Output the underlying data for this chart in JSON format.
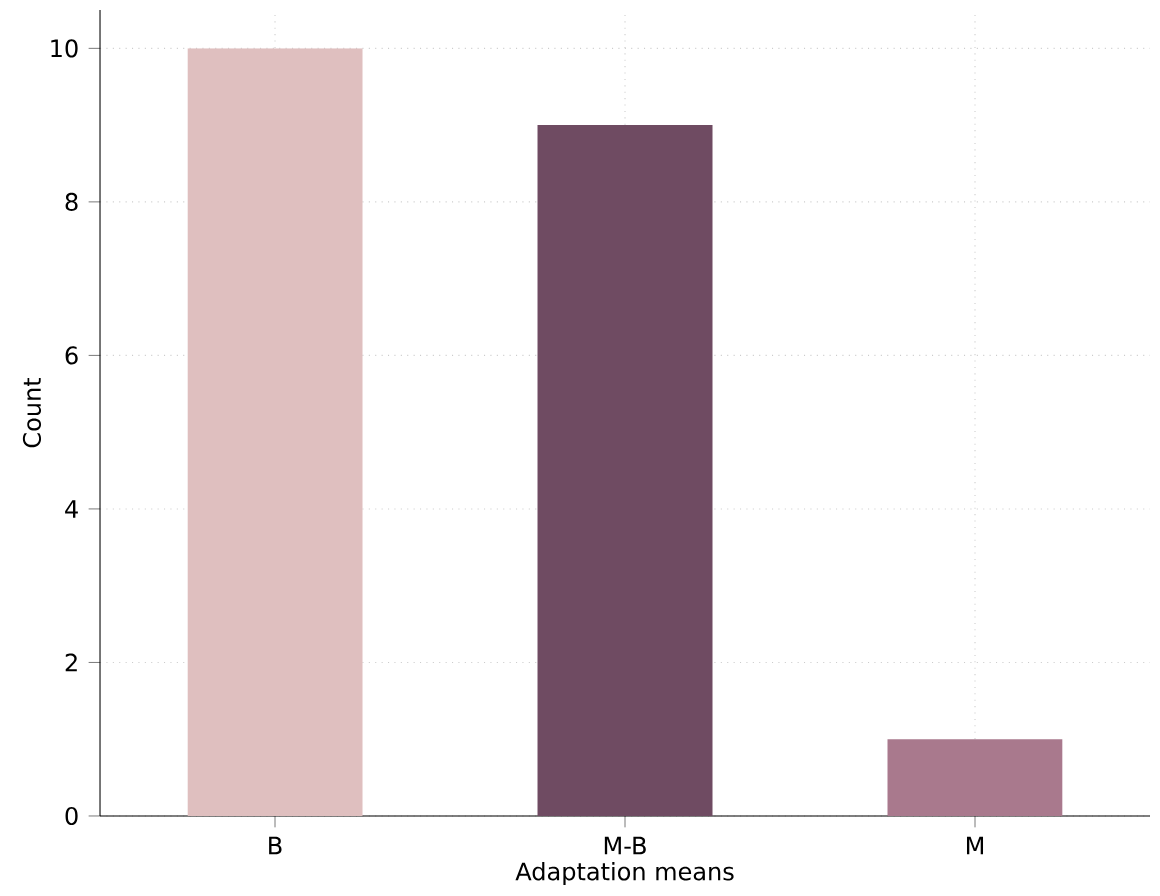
{
  "chart_data": {
    "type": "bar",
    "xlabel": "Adaptation means",
    "ylabel": "Count",
    "categories": [
      "B",
      "M-B",
      "M"
    ],
    "values": [
      10,
      9,
      1
    ],
    "colors": [
      "#dfbfbf",
      "#6f4b62",
      "#a9798d"
    ],
    "ylim": [
      0,
      10.5
    ],
    "yticks": [
      0,
      2,
      4,
      6,
      8,
      10
    ],
    "grid": true
  }
}
